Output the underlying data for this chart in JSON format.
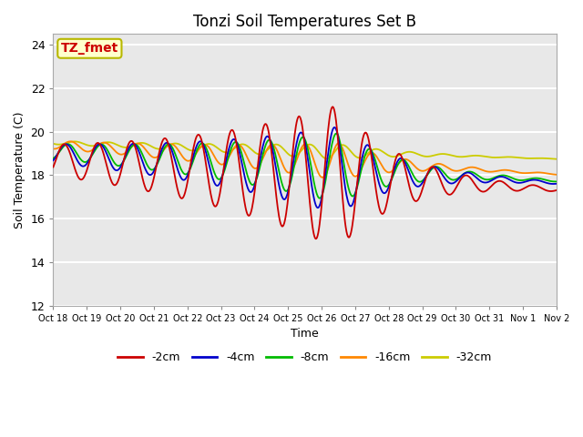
{
  "title": "Tonzi Soil Temperatures Set B",
  "xlabel": "Time",
  "ylabel": "Soil Temperature (C)",
  "ylim": [
    12,
    24.5
  ],
  "xlim": [
    0,
    15
  ],
  "plot_bg": "#e8e8e8",
  "grid_color": "white",
  "annotation_text": "TZ_fmet",
  "annotation_color": "#cc0000",
  "annotation_bg": "#ffffcc",
  "annotation_border": "#b8b800",
  "series_colors": {
    "-2cm": "#cc0000",
    "-4cm": "#0000cc",
    "-8cm": "#00bb00",
    "-16cm": "#ff8800",
    "-32cm": "#cccc00"
  },
  "lw": 1.3,
  "xtick_labels": [
    "Oct 18",
    "Oct 19",
    "Oct 20",
    "Oct 21",
    "Oct 22",
    "Oct 23",
    "Oct 24",
    "Oct 25",
    "Oct 26",
    "Oct 27",
    "Oct 28",
    "Oct 29",
    "Oct 30",
    "Oct 31",
    "Nov 1",
    "Nov 2"
  ],
  "ytick_vals": [
    12,
    14,
    16,
    18,
    20,
    22,
    24
  ]
}
